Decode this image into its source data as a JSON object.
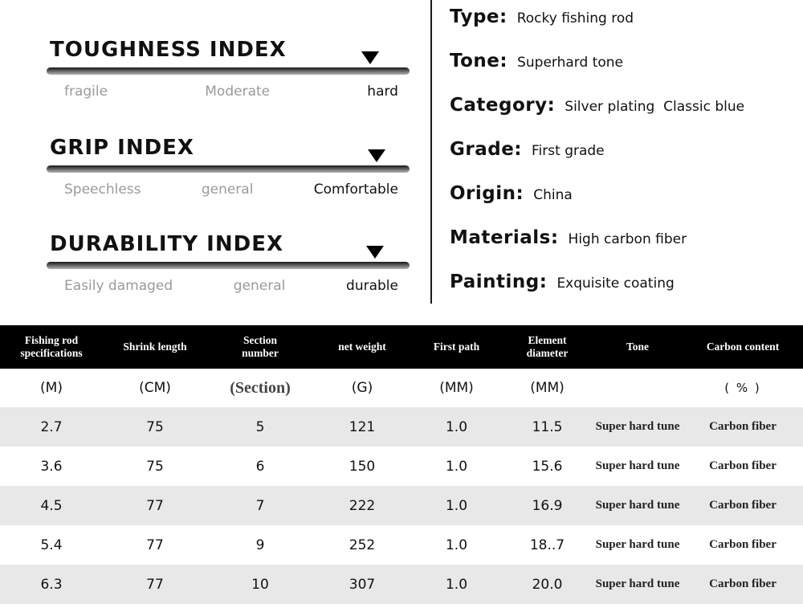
{
  "indices": [
    {
      "title": "TOUGHNESS INDEX",
      "labels": [
        "fragile",
        "Moderate",
        "hard"
      ],
      "marker_position": "high"
    },
    {
      "title": "GRIP INDEX",
      "labels": [
        "Speechless",
        "general",
        "Comfortable"
      ],
      "marker_position": "high"
    },
    {
      "title": "DURABILITY INDEX",
      "labels": [
        "Easily damaged",
        "general",
        "durable"
      ],
      "marker_position": "high"
    }
  ],
  "specs": [
    {
      "label": "Type:",
      "value": "Rocky fishing rod"
    },
    {
      "label": "Tone:",
      "value": "Superhard tone"
    },
    {
      "label": "Category:",
      "value": "Silver plating  Classic blue"
    },
    {
      "label": "Grade:",
      "value": "First grade"
    },
    {
      "label": "Origin:",
      "value": "China"
    },
    {
      "label": "Materials:",
      "value": "High carbon fiber"
    },
    {
      "label": "Painting:",
      "value": "Exquisite coating"
    }
  ],
  "table": {
    "headers": [
      "Fishing rod\nspecifications",
      "Shrink length",
      "Section\nnumber",
      "net weight",
      "First path",
      "Element\ndiameter",
      "Tone",
      "Carbon content"
    ],
    "units": [
      "(M)",
      "(CM)",
      "(Section)",
      "(G)",
      "(MM)",
      "(MM)",
      "",
      "( % )"
    ],
    "rows": [
      [
        "2.7",
        "75",
        "5",
        "121",
        "1.0",
        "11.5",
        "Super hard tune",
        "Carbon fiber"
      ],
      [
        "3.6",
        "75",
        "6",
        "150",
        "1.0",
        "15.6",
        "Super hard tune",
        "Carbon fiber"
      ],
      [
        "4.5",
        "77",
        "7",
        "222",
        "1.0",
        "16.9",
        "Super hard tune",
        "Carbon fiber"
      ],
      [
        "5.4",
        "77",
        "9",
        "252",
        "1.0",
        "18..7",
        "Super hard tune",
        "Carbon fiber"
      ],
      [
        "6.3",
        "77",
        "10",
        "307",
        "1.0",
        "20.0",
        "Super hard tune",
        "Carbon fiber"
      ]
    ]
  },
  "colors": {
    "table_header_bg": "#000000",
    "zebra_row": "#e8e8e8",
    "muted_text": "#9a9a9a"
  }
}
